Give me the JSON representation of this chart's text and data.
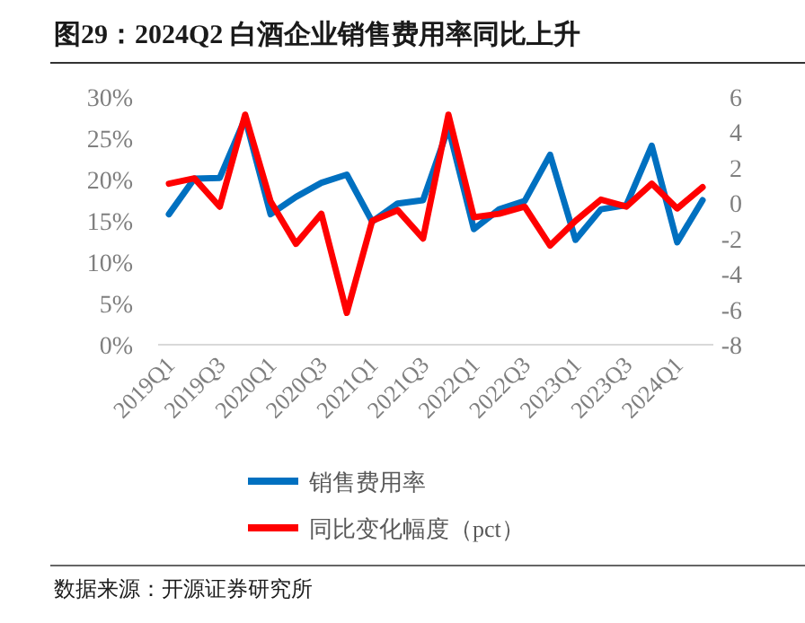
{
  "chart_data": {
    "type": "line",
    "title": "图29：2024Q2 白酒企业销售费用率同比上升",
    "categories": [
      "2019Q1",
      null,
      "2019Q3",
      null,
      "2020Q1",
      null,
      "2020Q3",
      null,
      "2021Q1",
      null,
      "2021Q3",
      null,
      "2022Q1",
      null,
      "2022Q3",
      null,
      "2023Q1",
      null,
      "2023Q3",
      null,
      "2024Q1",
      null
    ],
    "series": [
      {
        "name": "销售费用率",
        "color": "#0070c0",
        "values": [
          15.8,
          20.1,
          20.2,
          27.4,
          15.8,
          17.9,
          19.6,
          20.6,
          14.9,
          17.1,
          17.5,
          26.3,
          14.0,
          16.4,
          17.4,
          23.0,
          12.7,
          16.4,
          16.9,
          24.1,
          12.4,
          17.5
        ]
      },
      {
        "name": "同比变化幅度（pct）",
        "color": "#ff0000",
        "axis": "y2",
        "values": [
          1.1,
          1.4,
          -0.2,
          5.0,
          0.1,
          -2.3,
          -0.6,
          -6.2,
          -1.0,
          -0.4,
          -2.0,
          5.0,
          -0.8,
          -0.6,
          -0.2,
          -2.4,
          -1.0,
          0.2,
          -0.2,
          1.1,
          -0.3,
          0.9
        ]
      }
    ],
    "ylim": [
      0,
      30
    ],
    "yticks": [
      {
        "value": 0,
        "label": "0%"
      },
      {
        "value": 5,
        "label": "5%"
      },
      {
        "value": 10,
        "label": "10%"
      },
      {
        "value": 15,
        "label": "15%"
      },
      {
        "value": 20,
        "label": "20%"
      },
      {
        "value": 25,
        "label": "25%"
      },
      {
        "value": 30,
        "label": "30%"
      }
    ],
    "y2lim": [
      -8,
      6
    ],
    "y2ticks": [
      -8,
      -6,
      -4,
      -2,
      0,
      2,
      4,
      6
    ],
    "grid": false,
    "legend": "bottom",
    "marker": "none",
    "line_style": "solid",
    "annotations": [
      "数据来源：开源证券研究所"
    ]
  }
}
